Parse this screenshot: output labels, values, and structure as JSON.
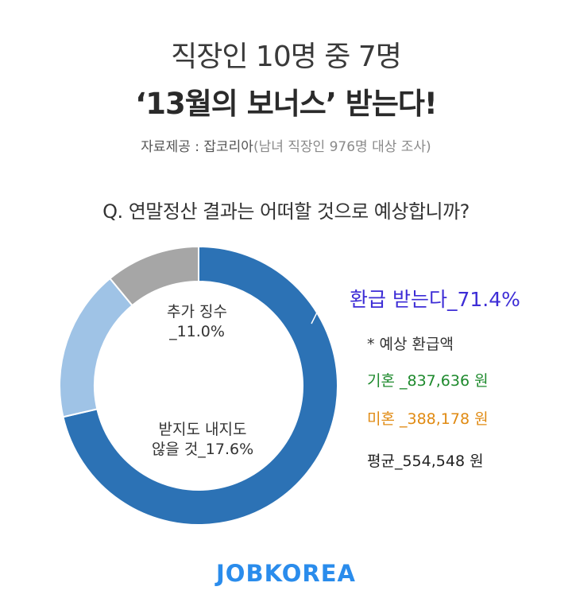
{
  "header": {
    "title_line1": "직장인 10명 중 7명",
    "title_line2": "‘13월의 보너스’ 받는다!",
    "source_main": "자료제공 : 잡코리아",
    "source_paren": "(남녀 직장인 976명 대상 조사)"
  },
  "chart_data": {
    "type": "pie",
    "title": "Q. 연말정산 결과는 어떠할 것으로 예상합니까?",
    "slices": [
      {
        "name": "환급 받는다",
        "value": 71.4,
        "label": "환급 받는다_71.4%",
        "color": "#2c72b5"
      },
      {
        "name": "받지도 내지도 않을 것",
        "value": 17.6,
        "label_line1": "받지도 내지도",
        "label_line2": "않을 것_17.6%",
        "color": "#9fc3e6"
      },
      {
        "name": "추가 징수",
        "value": 11.0,
        "label_line1": "추가 징수",
        "label_line2": "_11.0%",
        "color": "#a6a6a6"
      }
    ]
  },
  "refund_info": {
    "heading": "* 예상 환급액",
    "married": "기혼 _837,636 원",
    "single": "미혼 _388,178 원",
    "average": "평균_554,548 원",
    "married_color": "#1e8a2d",
    "single_color": "#e08a12"
  },
  "footer": {
    "logo": "JOBKOREA",
    "logo_color": "#2a8cec"
  }
}
